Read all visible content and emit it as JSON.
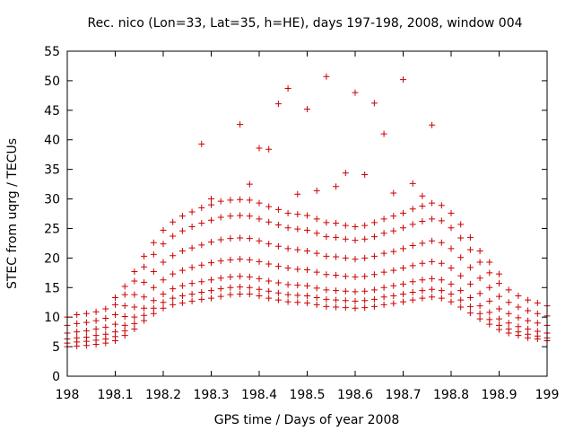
{
  "chart_data": {
    "type": "scatter",
    "title": "Rec. nico (Lon=33, Lat=35, h=HE), days 197-198, 2008, window 004",
    "xlabel": "GPS time / Days of year 2008",
    "ylabel": "STEC from uqrg / TECUs",
    "xlim": [
      198,
      199
    ],
    "ylim": [
      0,
      55
    ],
    "xticks": [
      "198",
      "198.1",
      "198.2",
      "198.3",
      "198.4",
      "198.5",
      "198.6",
      "198.7",
      "198.8",
      "198.9",
      "199"
    ],
    "yticks": [
      "0",
      "5",
      "10",
      "15",
      "20",
      "25",
      "30",
      "35",
      "40",
      "45",
      "50",
      "55"
    ],
    "grid": false,
    "legend": "none",
    "marker": "plus",
    "marker_color": "#cc0000",
    "series": [
      {
        "x": [
          198.0,
          198.02,
          198.04,
          198.06,
          198.08,
          198.1,
          198.12,
          198.14,
          198.16,
          198.18,
          198.2,
          198.22,
          198.24,
          198.26,
          198.28,
          198.3,
          198.32,
          198.34,
          198.36,
          198.38,
          198.4,
          198.42,
          198.44,
          198.46,
          198.48,
          198.5,
          198.52,
          198.54,
          198.56,
          198.58,
          198.6,
          198.62,
          198.64,
          198.66,
          198.68,
          198.7,
          198.72,
          198.74,
          198.76,
          198.78,
          198.8,
          198.82,
          198.84,
          198.86,
          198.88,
          198.9,
          198.92,
          198.94,
          198.96,
          198.98,
          199.0
        ],
        "y": [
          5.0,
          5.1,
          5.2,
          5.4,
          5.6,
          6.0,
          6.9,
          8.0,
          9.4,
          10.6,
          11.5,
          12.1,
          12.4,
          12.7,
          13.0,
          13.2,
          13.5,
          13.8,
          13.9,
          13.9,
          13.6,
          13.2,
          12.9,
          12.6,
          12.5,
          12.4,
          12.1,
          11.8,
          11.7,
          11.6,
          11.5,
          11.6,
          11.8,
          12.1,
          12.3,
          12.6,
          12.9,
          13.2,
          13.4,
          13.2,
          12.6,
          11.7,
          10.7,
          9.7,
          8.8,
          7.9,
          7.3,
          6.9,
          6.5,
          6.3,
          6.0
        ]
      },
      {
        "x": [
          198.0,
          198.02,
          198.04,
          198.06,
          198.08,
          198.1,
          198.12,
          198.14,
          198.16,
          198.18,
          198.2,
          198.22,
          198.24,
          198.26,
          198.28,
          198.3,
          198.32,
          198.34,
          198.36,
          198.38,
          198.4,
          198.42,
          198.44,
          198.46,
          198.48,
          198.5,
          198.52,
          198.54,
          198.56,
          198.58,
          198.6,
          198.62,
          198.64,
          198.66,
          198.68,
          198.7,
          198.72,
          198.74,
          198.76,
          198.78,
          198.8,
          198.82,
          198.84,
          198.86,
          198.88,
          198.9,
          198.92,
          198.94,
          198.96,
          198.98,
          199.0
        ],
        "y": [
          5.6,
          5.8,
          5.9,
          6.1,
          6.3,
          6.7,
          7.7,
          8.9,
          10.3,
          11.5,
          12.5,
          13.2,
          13.6,
          13.9,
          14.2,
          14.5,
          14.8,
          15.0,
          15.1,
          15.0,
          14.7,
          14.4,
          14.1,
          13.8,
          13.7,
          13.6,
          13.3,
          13.0,
          12.9,
          12.8,
          12.7,
          12.8,
          13.0,
          13.4,
          13.6,
          13.9,
          14.2,
          14.5,
          14.7,
          14.5,
          13.9,
          12.9,
          11.8,
          10.6,
          9.6,
          8.6,
          8.0,
          7.5,
          7.1,
          6.8,
          6.5
        ]
      },
      {
        "x": [
          198.0,
          198.02,
          198.04,
          198.06,
          198.08,
          198.1,
          198.12,
          198.14,
          198.16,
          198.18,
          198.2,
          198.22,
          198.24,
          198.26,
          198.28,
          198.3,
          198.32,
          198.34,
          198.36,
          198.38,
          198.4,
          198.42,
          198.44,
          198.46,
          198.48,
          198.5,
          198.52,
          198.54,
          198.56,
          198.58,
          198.6,
          198.62,
          198.64,
          198.66,
          198.68,
          198.7,
          198.72,
          198.74,
          198.76,
          198.78,
          198.8,
          198.82,
          198.84,
          198.86,
          198.88,
          198.9,
          198.92,
          198.94,
          198.96,
          198.98,
          199.0
        ],
        "y": [
          6.3,
          6.5,
          6.6,
          6.9,
          7.1,
          7.5,
          8.6,
          10.0,
          11.5,
          12.8,
          13.9,
          14.8,
          15.3,
          15.7,
          16.0,
          16.3,
          16.6,
          16.8,
          16.9,
          16.8,
          16.5,
          16.1,
          15.8,
          15.5,
          15.4,
          15.3,
          14.9,
          14.6,
          14.5,
          14.4,
          14.3,
          14.4,
          14.6,
          15.0,
          15.3,
          15.6,
          16.0,
          16.3,
          16.5,
          16.3,
          15.6,
          14.5,
          13.3,
          11.9,
          10.8,
          9.7,
          9.0,
          8.4,
          8.0,
          7.6,
          7.3
        ]
      },
      {
        "x": [
          198.0,
          198.02,
          198.04,
          198.06,
          198.08,
          198.1,
          198.12,
          198.14,
          198.16,
          198.18,
          198.2,
          198.22,
          198.24,
          198.26,
          198.28,
          198.3,
          198.32,
          198.34,
          198.36,
          198.38,
          198.4,
          198.42,
          198.44,
          198.46,
          198.48,
          198.5,
          198.52,
          198.54,
          198.56,
          198.58,
          198.6,
          198.62,
          198.64,
          198.66,
          198.68,
          198.7,
          198.72,
          198.74,
          198.76,
          198.78,
          198.8,
          198.82,
          198.84,
          198.86,
          198.88,
          198.9,
          198.92,
          198.94,
          198.96,
          198.98,
          199.0
        ],
        "y": [
          7.3,
          7.5,
          7.7,
          8.0,
          8.3,
          8.8,
          10.1,
          11.7,
          13.4,
          15.0,
          16.3,
          17.3,
          17.9,
          18.4,
          18.8,
          19.2,
          19.5,
          19.7,
          19.8,
          19.7,
          19.4,
          19.0,
          18.6,
          18.3,
          18.1,
          18.0,
          17.6,
          17.2,
          17.1,
          16.9,
          16.8,
          16.9,
          17.2,
          17.6,
          17.9,
          18.3,
          18.7,
          19.1,
          19.4,
          19.1,
          18.3,
          17.0,
          15.6,
          14.0,
          12.7,
          11.4,
          10.6,
          9.9,
          9.4,
          9.0,
          8.6
        ]
      },
      {
        "x": [
          198.0,
          198.02,
          198.04,
          198.06,
          198.08,
          198.1,
          198.12,
          198.14,
          198.16,
          198.18,
          198.2,
          198.22,
          198.24,
          198.26,
          198.28,
          198.3,
          198.32,
          198.34,
          198.36,
          198.38,
          198.4,
          198.42,
          198.44,
          198.46,
          198.48,
          198.5,
          198.52,
          198.54,
          198.56,
          198.58,
          198.6,
          198.62,
          198.64,
          198.66,
          198.68,
          198.7,
          198.72,
          198.74,
          198.76,
          198.78,
          198.8,
          198.82,
          198.84,
          198.86,
          198.88,
          198.9,
          198.92,
          198.94,
          198.96,
          198.98,
          199.0
        ],
        "y": [
          8.6,
          8.9,
          9.1,
          9.4,
          9.8,
          10.4,
          11.9,
          13.8,
          15.9,
          17.7,
          19.3,
          20.4,
          21.2,
          21.7,
          22.2,
          22.7,
          23.1,
          23.3,
          23.4,
          23.3,
          22.9,
          22.4,
          22.0,
          21.6,
          21.4,
          21.2,
          20.8,
          20.3,
          20.2,
          20.0,
          19.8,
          20.0,
          20.3,
          20.8,
          21.1,
          21.6,
          22.1,
          22.5,
          22.9,
          22.6,
          21.6,
          20.1,
          18.4,
          16.6,
          15.0,
          13.5,
          12.5,
          11.7,
          11.1,
          10.6,
          10.2
        ]
      },
      {
        "x": [
          198.0,
          198.02,
          198.04,
          198.06,
          198.08,
          198.1,
          198.12,
          198.14,
          198.16,
          198.18,
          198.2,
          198.22,
          198.24,
          198.26,
          198.28,
          198.3,
          198.32,
          198.34,
          198.36,
          198.38,
          198.4,
          198.42,
          198.44,
          198.46,
          198.48,
          198.5,
          198.52,
          198.54,
          198.56,
          198.58,
          198.6,
          198.62,
          198.64,
          198.66,
          198.68,
          198.7,
          198.72,
          198.74,
          198.76,
          198.78,
          198.8,
          198.82,
          198.84,
          198.86,
          198.88,
          198.9,
          198.92,
          198.94,
          198.96,
          198.98,
          199.0
        ],
        "y": [
          10.0,
          10.4,
          10.6,
          10.9,
          11.4,
          12.1,
          13.8,
          16.1,
          18.5,
          20.6,
          22.4,
          23.7,
          24.6,
          25.3,
          25.9,
          26.4,
          26.9,
          27.1,
          27.2,
          27.1,
          26.6,
          26.1,
          25.6,
          25.1,
          24.9,
          24.7,
          24.2,
          23.6,
          23.5,
          23.2,
          23.0,
          23.2,
          23.6,
          24.2,
          24.6,
          25.1,
          25.7,
          26.2,
          26.6,
          26.3,
          25.1,
          23.4,
          21.4,
          19.3,
          17.5,
          15.7,
          14.6,
          13.6,
          12.9,
          12.4,
          11.9
        ]
      },
      {
        "x": [
          198.1,
          198.12,
          198.14,
          198.16,
          198.18,
          198.2,
          198.22,
          198.24,
          198.26,
          198.28,
          198.3,
          198.32,
          198.34,
          198.36,
          198.38,
          198.4,
          198.42,
          198.44,
          198.46,
          198.48,
          198.5,
          198.52,
          198.54,
          198.56,
          198.58,
          198.6,
          198.62,
          198.64,
          198.66,
          198.68,
          198.7,
          198.72,
          198.74,
          198.76,
          198.78,
          198.8,
          198.82,
          198.84,
          198.86,
          198.88,
          198.9
        ],
        "y": [
          13.3,
          15.2,
          17.7,
          20.3,
          22.6,
          24.7,
          26.1,
          27.1,
          27.8,
          28.5,
          29.0,
          29.6,
          29.8,
          29.9,
          29.8,
          29.3,
          28.7,
          28.2,
          27.6,
          27.4,
          27.2,
          26.6,
          26.0,
          25.9,
          25.5,
          25.3,
          25.5,
          26.0,
          26.6,
          27.1,
          27.6,
          28.3,
          28.8,
          29.3,
          28.9,
          27.6,
          25.7,
          23.5,
          21.2,
          19.3,
          17.3
        ]
      },
      {
        "x": [
          198.28,
          198.3,
          198.36,
          198.38,
          198.4,
          198.42,
          198.44,
          198.46,
          198.48,
          198.5,
          198.52,
          198.54,
          198.56,
          198.58,
          198.6,
          198.62,
          198.64,
          198.66,
          198.68,
          198.7,
          198.72,
          198.74,
          198.76
        ],
        "y": [
          39.3,
          30.0,
          42.6,
          32.5,
          38.6,
          38.4,
          46.1,
          48.7,
          30.8,
          45.2,
          31.4,
          50.7,
          32.1,
          34.4,
          48.0,
          34.1,
          46.2,
          41.0,
          31.0,
          50.2,
          32.6,
          30.5,
          42.5
        ]
      }
    ]
  }
}
